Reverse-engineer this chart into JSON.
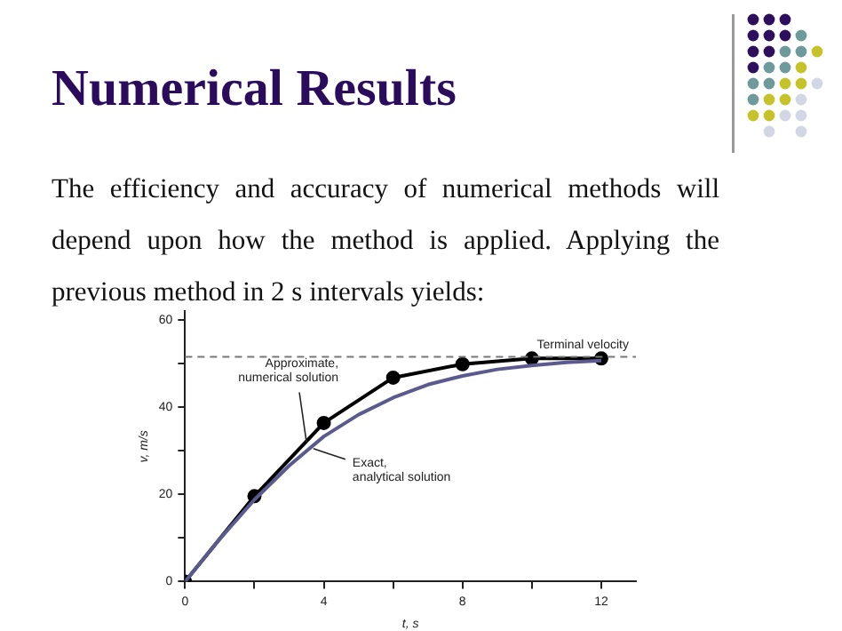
{
  "chart_data": {
    "type": "line",
    "title": "Numerical Results",
    "subtitle": "The efficiency and accuracy of numerical methods will depend upon how the method is applied. Applying the previous method in 2 s intervals yields:",
    "xlabel": "t, s",
    "ylabel": "v, m/s",
    "series": [
      {
        "color": "#5b5a8e",
        "marker": "none",
        "x": [
          0,
          1,
          2,
          3,
          4,
          5,
          6,
          7,
          8,
          9,
          10,
          11,
          12
        ],
        "values": [
          0,
          9.8,
          18.8,
          26.6,
          33.3,
          38.3,
          42.2,
          45.2,
          47.2,
          48.7,
          49.6,
          50.3,
          50.7
        ]
      },
      {
        "color": "#000000",
        "marker": "circle",
        "x": [
          0,
          2,
          4,
          6,
          8,
          10,
          12
        ],
        "values": [
          0,
          19.6,
          36.4,
          46.8,
          49.9,
          51.2,
          51.2
        ]
      }
    ],
    "xlim": [
      0,
      13
    ],
    "xticks": [
      0,
      {
        "value": 2,
        "label": null
      },
      4,
      {
        "value": 6,
        "label": null
      },
      8,
      {
        "value": 10,
        "label": null
      },
      12
    ],
    "ylim": [
      0,
      62
    ],
    "yticks": [
      0,
      {
        "value": 10,
        "label": null
      },
      20,
      {
        "value": 30,
        "label": null
      },
      40,
      {
        "value": 50,
        "label": null
      },
      60
    ],
    "ref_lines": [
      {
        "axis": "y",
        "value": 51.6,
        "label": "Terminal velocity",
        "color": "#777777",
        "line_style": "dashed"
      }
    ],
    "annotations": [
      {
        "text": "Approximate, numerical solution",
        "x": 3.5,
        "y": 32
      },
      {
        "text": "Exact, analytical solution",
        "x": 3.7,
        "y": 30.5
      }
    ],
    "grid": false,
    "legend": false
  }
}
